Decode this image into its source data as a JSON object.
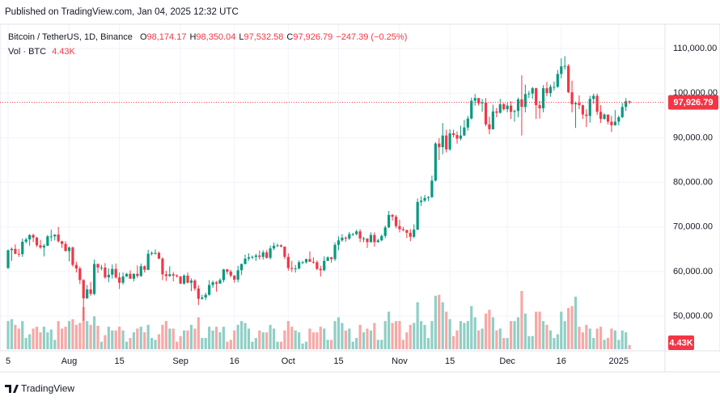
{
  "chart_data": {
    "type": "candlestick",
    "title": "Published on TradingView.com, Jan 04, 2025 12:32 UTC",
    "symbol": "Bitcoin / TetherUS, 1D, Binance",
    "ohlc_keys": [
      "O",
      "H",
      "L",
      "C"
    ],
    "ohlc_labels": [
      "98,174.17",
      "98,350.04",
      "97,532.58",
      "97,926.79"
    ],
    "change": "−247.39 (−0.25%)",
    "volume_title": "Vol · BTC",
    "volume_label": "4.43K",
    "brand": "TradingView",
    "up_color": "#089981",
    "down_color": "#f23645",
    "volume_up_color": "#8fcfc5",
    "volume_down_color": "#f7a8a6",
    "grid": true,
    "ylim": [
      42600,
      115800
    ],
    "yticks": [
      {
        "value": 50000,
        "label": "50,000.00"
      },
      {
        "value": 60000,
        "label": "60,000.00"
      },
      {
        "value": 70000,
        "label": "70,000.00"
      },
      {
        "value": 80000,
        "label": "80,000.00"
      },
      {
        "value": 90000,
        "label": "90,000.00"
      },
      {
        "value": 100000,
        "label": "100,000.00"
      },
      {
        "value": 110000,
        "label": "110,000.00"
      }
    ],
    "xticks": [
      {
        "value": "Jul 15",
        "label": "5"
      },
      {
        "value": "Aug 1",
        "label": "Aug"
      },
      {
        "value": "Aug 15",
        "label": "15"
      },
      {
        "value": "Sep 1",
        "label": "Sep"
      },
      {
        "value": "Sep 16",
        "label": "16"
      },
      {
        "value": "Oct 1",
        "label": "Oct"
      },
      {
        "value": "Oct 15",
        "label": "15"
      },
      {
        "value": "Nov 1",
        "label": "Nov"
      },
      {
        "value": "Nov 15",
        "label": "15"
      },
      {
        "value": "Dec 1",
        "label": "Dec"
      },
      {
        "value": "Dec 16",
        "label": "16"
      },
      {
        "value": "Jan 1",
        "label": "2025"
      }
    ],
    "x": [
      "Jul 15",
      "Jul 16",
      "Jul 17",
      "Jul 18",
      "Jul 19",
      "Jul 20",
      "Jul 21",
      "Jul 22",
      "Jul 23",
      "Jul 24",
      "Jul 25",
      "Jul 26",
      "Jul 27",
      "Jul 28",
      "Jul 29",
      "Jul 30",
      "Jul 31",
      "Aug 1",
      "Aug 2",
      "Aug 3",
      "Aug 4",
      "Aug 5",
      "Aug 6",
      "Aug 7",
      "Aug 8",
      "Aug 9",
      "Aug 10",
      "Aug 11",
      "Aug 12",
      "Aug 13",
      "Aug 14",
      "Aug 15",
      "Aug 16",
      "Aug 17",
      "Aug 18",
      "Aug 19",
      "Aug 20",
      "Aug 21",
      "Aug 22",
      "Aug 23",
      "Aug 24",
      "Aug 25",
      "Aug 26",
      "Aug 27",
      "Aug 28",
      "Aug 29",
      "Aug 30",
      "Aug 31",
      "Sep 1",
      "Sep 2",
      "Sep 3",
      "Sep 4",
      "Sep 5",
      "Sep 6",
      "Sep 7",
      "Sep 8",
      "Sep 9",
      "Sep 10",
      "Sep 11",
      "Sep 12",
      "Sep 13",
      "Sep 14",
      "Sep 15",
      "Sep 16",
      "Sep 17",
      "Sep 18",
      "Sep 19",
      "Sep 20",
      "Sep 21",
      "Sep 22",
      "Sep 23",
      "Sep 24",
      "Sep 25",
      "Sep 26",
      "Sep 27",
      "Sep 28",
      "Sep 29",
      "Sep 30",
      "Oct 1",
      "Oct 2",
      "Oct 3",
      "Oct 4",
      "Oct 5",
      "Oct 6",
      "Oct 7",
      "Oct 8",
      "Oct 9",
      "Oct 10",
      "Oct 11",
      "Oct 12",
      "Oct 13",
      "Oct 14",
      "Oct 15",
      "Oct 16",
      "Oct 17",
      "Oct 18",
      "Oct 19",
      "Oct 20",
      "Oct 21",
      "Oct 22",
      "Oct 23",
      "Oct 24",
      "Oct 25",
      "Oct 26",
      "Oct 27",
      "Oct 28",
      "Oct 29",
      "Oct 30",
      "Oct 31",
      "Nov 1",
      "Nov 2",
      "Nov 3",
      "Nov 4",
      "Nov 5",
      "Nov 6",
      "Nov 7",
      "Nov 8",
      "Nov 9",
      "Nov 10",
      "Nov 11",
      "Nov 12",
      "Nov 13",
      "Nov 14",
      "Nov 15",
      "Nov 16",
      "Nov 17",
      "Nov 18",
      "Nov 19",
      "Nov 20",
      "Nov 21",
      "Nov 22",
      "Nov 23",
      "Nov 24",
      "Nov 25",
      "Nov 26",
      "Nov 27",
      "Nov 28",
      "Nov 29",
      "Nov 30",
      "Dec 1",
      "Dec 2",
      "Dec 3",
      "Dec 4",
      "Dec 5",
      "Dec 6",
      "Dec 7",
      "Dec 8",
      "Dec 9",
      "Dec 10",
      "Dec 11",
      "Dec 12",
      "Dec 13",
      "Dec 14",
      "Dec 15",
      "Dec 16",
      "Dec 17",
      "Dec 18",
      "Dec 19",
      "Dec 20",
      "Dec 21",
      "Dec 22",
      "Dec 23",
      "Dec 24",
      "Dec 25",
      "Dec 26",
      "Dec 27",
      "Dec 28",
      "Dec 29",
      "Dec 30",
      "Dec 31",
      "Jan 1",
      "Jan 2",
      "Jan 3",
      "Jan 4"
    ],
    "open": [
      60800,
      64800,
      65100,
      64000,
      63900,
      66700,
      67200,
      68200,
      67600,
      65900,
      65400,
      65800,
      67900,
      67900,
      68300,
      66800,
      66200,
      64600,
      65400,
      61500,
      60700,
      58100,
      54000,
      56000,
      55000,
      61700,
      60900,
      60900,
      58700,
      59300,
      60600,
      58700,
      57500,
      58900,
      59500,
      58400,
      59500,
      59000,
      61200,
      60400,
      64000,
      64200,
      64200,
      62900,
      59400,
      59000,
      59400,
      59100,
      58900,
      57300,
      59100,
      57500,
      58000,
      56200,
      53900,
      54200,
      54800,
      57000,
      57600,
      57300,
      58100,
      60500,
      60000,
      59100,
      58200,
      60300,
      61700,
      62900,
      63200,
      63300,
      63600,
      63300,
      64300,
      63100,
      65200,
      65800,
      65900,
      65600,
      63300,
      60800,
      60600,
      60700,
      62100,
      62100,
      62800,
      62200,
      62100,
      60600,
      60300,
      62400,
      63200,
      62800,
      66000,
      67000,
      67600,
      67400,
      68400,
      68400,
      69000,
      67400,
      67400,
      66600,
      68200,
      66600,
      67000,
      68000,
      69900,
      72700,
      72300,
      70200,
      69500,
      69300,
      68700,
      67800,
      69400,
      75600,
      75900,
      76500,
      76700,
      80400,
      88700,
      87900,
      90500,
      87400,
      91000,
      90600,
      89800,
      90500,
      92300,
      94300,
      98300,
      98900,
      97700,
      97900,
      93000,
      91900,
      95900,
      95600,
      97500,
      96400,
      97200,
      95800,
      96000,
      98600,
      96900,
      99800,
      99900,
      101100,
      97300,
      96600,
      101100,
      100000,
      101400,
      101400,
      104300,
      106000,
      106100,
      100200,
      97500,
      97800,
      97300,
      95200,
      94900,
      98700,
      99400,
      95800,
      94200,
      95200,
      93600,
      92800,
      93600,
      94600,
      96900,
      98174.17
    ],
    "high": [
      64900,
      65400,
      66100,
      65100,
      67400,
      67600,
      68400,
      68500,
      67800,
      67100,
      66200,
      68200,
      69400,
      68300,
      70000,
      66900,
      66800,
      65600,
      65600,
      62200,
      61100,
      58300,
      57000,
      57700,
      62700,
      61800,
      61500,
      61900,
      60700,
      61600,
      61800,
      59800,
      59800,
      59700,
      60300,
      59600,
      61400,
      61800,
      61400,
      64900,
      64500,
      65000,
      64500,
      63200,
      60200,
      61200,
      59900,
      59400,
      59000,
      59400,
      59800,
      58500,
      58300,
      56900,
      54800,
      55300,
      58100,
      58000,
      57900,
      58500,
      60600,
      60600,
      60400,
      59200,
      61300,
      61800,
      63800,
      64100,
      63600,
      64000,
      64700,
      64800,
      64800,
      65800,
      66500,
      66300,
      66100,
      65600,
      64100,
      62400,
      61500,
      62500,
      62400,
      62900,
      64500,
      63200,
      62500,
      61300,
      63400,
      63400,
      63300,
      66500,
      67900,
      68400,
      67900,
      68900,
      68700,
      69400,
      69500,
      67800,
      67500,
      68800,
      68800,
      67400,
      68300,
      70300,
      73600,
      72900,
      72700,
      71600,
      70000,
      69400,
      69500,
      70600,
      76400,
      76900,
      77200,
      76900,
      81500,
      89000,
      89900,
      93300,
      91800,
      91900,
      91800,
      91400,
      92700,
      94000,
      94900,
      99000,
      99800,
      98900,
      98700,
      98900,
      94700,
      97400,
      96700,
      98700,
      97800,
      97900,
      98200,
      96300,
      99000,
      104000,
      101900,
      100500,
      101400,
      101200,
      98300,
      101800,
      102500,
      101900,
      102600,
      105200,
      107800,
      108300,
      106500,
      102800,
      98100,
      99500,
      97400,
      96400,
      99400,
      99900,
      99900,
      97300,
      95500,
      95200,
      94900,
      96200,
      95000,
      97800,
      98900,
      98350.04
    ],
    "low": [
      60600,
      62400,
      63900,
      63300,
      63300,
      66300,
      65800,
      66600,
      65500,
      65100,
      63400,
      65700,
      66800,
      67000,
      66500,
      65300,
      64500,
      62300,
      61100,
      59800,
      57200,
      49000,
      53900,
      54600,
      54700,
      59700,
      60300,
      58400,
      57600,
      58400,
      58400,
      56100,
      57100,
      58800,
      58400,
      57800,
      58600,
      58800,
      59800,
      60300,
      63600,
      63800,
      62800,
      58100,
      57900,
      58800,
      57800,
      58700,
      57200,
      57100,
      57400,
      55600,
      55700,
      52500,
      53700,
      53600,
      54600,
      56400,
      55500,
      57300,
      57600,
      59400,
      58700,
      57500,
      57600,
      59200,
      61600,
      62400,
      62800,
      62400,
      62700,
      62700,
      62900,
      62700,
      64800,
      65500,
      65400,
      62800,
      60200,
      59900,
      59800,
      60500,
      61700,
      61800,
      62200,
      61800,
      60300,
      58900,
      60100,
      62400,
      62000,
      62400,
      64800,
      66700,
      66700,
      67100,
      68000,
      68100,
      66600,
      66600,
      65300,
      66500,
      65600,
      66500,
      66800,
      67500,
      69800,
      71400,
      69700,
      68800,
      69000,
      67500,
      66800,
      67500,
      69300,
      74700,
      75600,
      75800,
      76500,
      80200,
      85000,
      86300,
      86700,
      87100,
      90100,
      88700,
      89400,
      90400,
      91600,
      94100,
      97200,
      97200,
      95800,
      92600,
      90800,
      91800,
      94600,
      95400,
      96100,
      95700,
      94200,
      93600,
      94600,
      90500,
      95700,
      98900,
      98700,
      94200,
      94300,
      95700,
      99300,
      99200,
      100600,
      101200,
      103300,
      105300,
      100000,
      95700,
      92200,
      96400,
      94200,
      92400,
      93400,
      97600,
      95100,
      93300,
      94100,
      93000,
      91300,
      92700,
      92800,
      94400,
      96000,
      97532.58
    ],
    "close": [
      64800,
      65100,
      64000,
      63900,
      66700,
      67200,
      68200,
      67600,
      65900,
      65400,
      65800,
      67900,
      67900,
      68300,
      66800,
      66200,
      64600,
      65400,
      61500,
      60700,
      58100,
      54000,
      56000,
      55000,
      61700,
      60900,
      60900,
      58700,
      59300,
      60600,
      58700,
      57500,
      58900,
      59500,
      58400,
      59500,
      59000,
      61200,
      60400,
      64000,
      64200,
      64200,
      62900,
      59400,
      59000,
      59400,
      59100,
      58900,
      57300,
      59100,
      57500,
      58000,
      56200,
      53900,
      54200,
      54800,
      57000,
      57600,
      57300,
      58100,
      60500,
      60000,
      59100,
      58200,
      60300,
      61700,
      62900,
      63200,
      63300,
      63600,
      63300,
      64300,
      63100,
      65200,
      65800,
      65900,
      65600,
      63300,
      60800,
      60600,
      60700,
      62100,
      62100,
      62800,
      62200,
      62100,
      60600,
      60300,
      62400,
      63200,
      62800,
      66000,
      67000,
      67600,
      67400,
      68400,
      68400,
      69000,
      67400,
      67400,
      66600,
      68200,
      66600,
      67000,
      68000,
      69900,
      72700,
      72300,
      70200,
      69500,
      69300,
      68700,
      67800,
      69400,
      75600,
      75900,
      76500,
      76700,
      80400,
      88700,
      87900,
      90500,
      87400,
      91000,
      90600,
      89800,
      90500,
      92300,
      94300,
      98300,
      98900,
      97700,
      97900,
      93000,
      91900,
      95900,
      95600,
      97500,
      96400,
      97200,
      95800,
      96000,
      98600,
      96900,
      99800,
      99900,
      101100,
      97300,
      96600,
      101100,
      100000,
      101400,
      101400,
      104300,
      106000,
      106100,
      100200,
      97500,
      97800,
      97300,
      95200,
      94900,
      98700,
      99400,
      95800,
      94200,
      95200,
      93600,
      92800,
      93600,
      94600,
      96900,
      98174.17,
      97926.79
    ],
    "volume": [
      30000,
      32000,
      26000,
      22000,
      30000,
      12000,
      16000,
      22000,
      24000,
      18000,
      24000,
      18000,
      21000,
      10000,
      30000,
      22000,
      24000,
      30000,
      32000,
      26000,
      28000,
      45000,
      30000,
      26000,
      35000,
      25000,
      8000,
      15000,
      24000,
      20000,
      20000,
      24000,
      20000,
      8000,
      12000,
      18000,
      22000,
      24000,
      18000,
      26000,
      12000,
      10000,
      16000,
      26000,
      30000,
      22000,
      22000,
      8000,
      14000,
      20000,
      20000,
      26000,
      22000,
      34000,
      12000,
      12000,
      24000,
      20000,
      24000,
      18000,
      24000,
      8000,
      10000,
      20000,
      26000,
      30000,
      28000,
      22000,
      8000,
      12000,
      20000,
      18000,
      18000,
      26000,
      22000,
      8000,
      8000,
      20000,
      30000,
      24000,
      20000,
      18000,
      6000,
      8000,
      22000,
      18000,
      18000,
      24000,
      22000,
      10000,
      10000,
      30000,
      34000,
      28000,
      20000,
      22000,
      8000,
      12000,
      26000,
      18000,
      22000,
      20000,
      28000,
      10000,
      10000,
      30000,
      40000,
      28000,
      30000,
      30000,
      10000,
      18000,
      26000,
      28000,
      50000,
      30000,
      26000,
      12000,
      30000,
      57000,
      58000,
      50000,
      40000,
      32000,
      14000,
      20000,
      30000,
      28000,
      30000,
      46000,
      34000,
      20000,
      22000,
      38000,
      42000,
      34000,
      20000,
      22000,
      12000,
      12000,
      30000,
      30000,
      34000,
      62000,
      38000,
      14000,
      14000,
      40000,
      40000,
      30000,
      26000,
      20000,
      12000,
      16000,
      40000,
      30000,
      44000,
      46000,
      56000,
      24000,
      18000,
      26000,
      22000,
      12000,
      22000,
      24000,
      10000,
      12000,
      22000,
      20000,
      10000,
      20000,
      18000,
      4430
    ]
  }
}
